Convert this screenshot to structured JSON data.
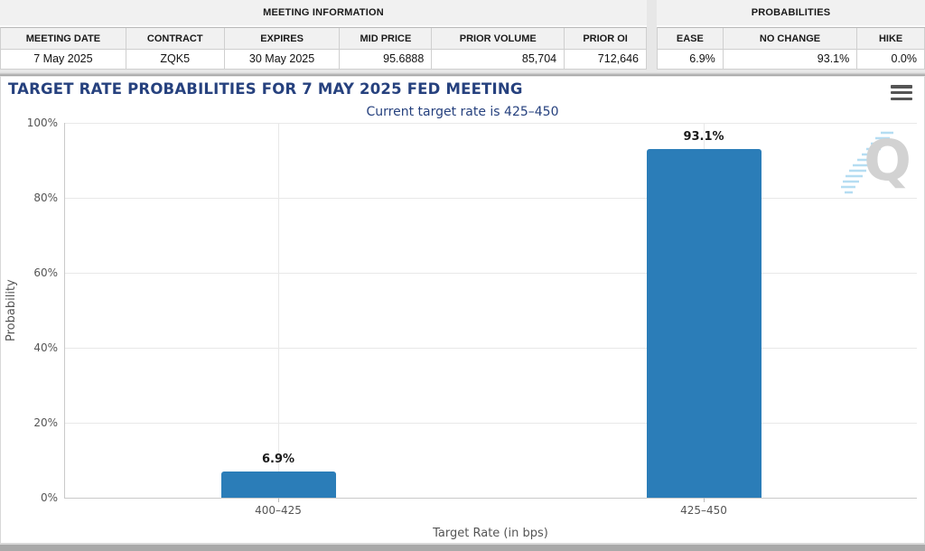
{
  "meeting_information": {
    "section_title": "MEETING INFORMATION",
    "columns": [
      "MEETING DATE",
      "CONTRACT",
      "EXPIRES",
      "MID PRICE",
      "PRIOR VOLUME",
      "PRIOR OI"
    ],
    "row": [
      "7 May 2025",
      "ZQK5",
      "30 May 2025",
      "95.6888",
      "85,704",
      "712,646"
    ]
  },
  "probabilities": {
    "section_title": "PROBABILITIES",
    "columns": [
      "EASE",
      "NO CHANGE",
      "HIKE"
    ],
    "row": [
      "6.9%",
      "93.1%",
      "0.0%"
    ]
  },
  "chart_data": {
    "type": "bar",
    "title": "TARGET RATE PROBABILITIES FOR 7 MAY 2025 FED MEETING",
    "subtitle": "Current target rate is 425–450",
    "categories": [
      "400–425",
      "425–450"
    ],
    "values": [
      6.9,
      93.1
    ],
    "value_labels": [
      "6.9%",
      "93.1%"
    ],
    "xlabel": "Target Rate (in bps)",
    "ylabel": "Probability",
    "ylim": [
      0,
      100
    ],
    "ytick_step": 20,
    "ytick_labels": [
      "0%",
      "20%",
      "40%",
      "60%",
      "80%",
      "100%"
    ],
    "grid": true,
    "legend": false,
    "bar_color": "#2b7db8"
  },
  "watermark_letter": "Q",
  "colors": {
    "title_accent": "#26417e",
    "bar": "#2b7db8",
    "header_bg": "#f1f1f1"
  }
}
